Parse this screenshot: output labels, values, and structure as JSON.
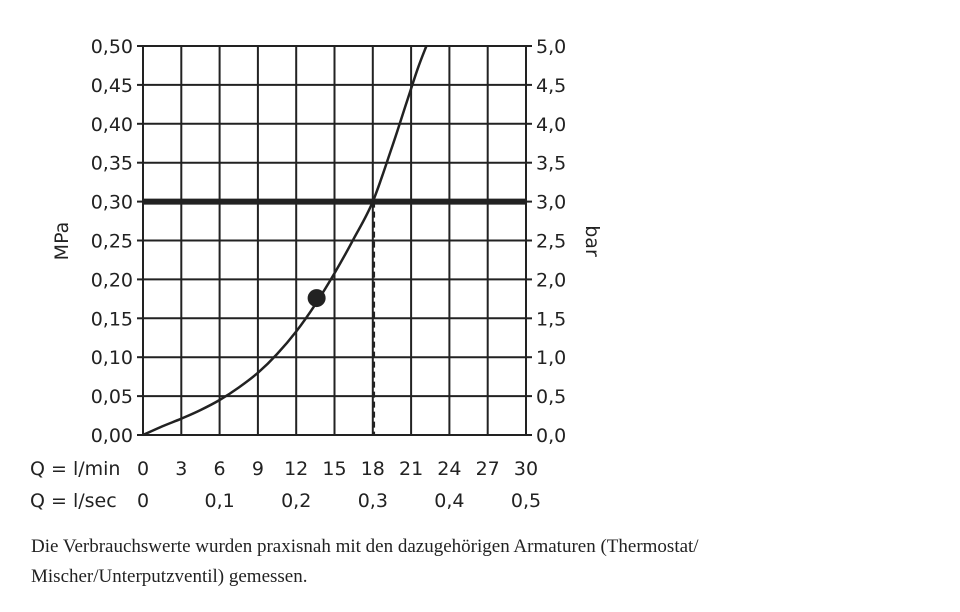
{
  "chart_data": {
    "type": "line",
    "xlabel_lmin": "Q = l/min",
    "xlabel_lsec": "Q = l/sec",
    "ylabel_left": "MPa",
    "ylabel_right": "bar",
    "x_ticks_lmin": [
      "0",
      "3",
      "6",
      "9",
      "12",
      "15",
      "18",
      "21",
      "24",
      "27",
      "30"
    ],
    "x_ticks_lsec": [
      {
        "label": "0",
        "value": 0
      },
      {
        "label": "0,1",
        "value": 6
      },
      {
        "label": "0,2",
        "value": 12
      },
      {
        "label": "0,3",
        "value": 18
      },
      {
        "label": "0,4",
        "value": 24
      },
      {
        "label": "0,5",
        "value": 30
      }
    ],
    "y_ticks_left": [
      "0,00",
      "0,05",
      "0,10",
      "0,15",
      "0,20",
      "0,25",
      "0,30",
      "0,35",
      "0,40",
      "0,45",
      "0,50"
    ],
    "y_ticks_right": [
      "0,0",
      "0,5",
      "1,0",
      "1,5",
      "2,0",
      "2,5",
      "3,0",
      "3,5",
      "4,0",
      "4,5",
      "5,0"
    ],
    "xlim": [
      0,
      30
    ],
    "ylim": [
      0,
      0.5
    ],
    "grid": true,
    "series": [
      {
        "x": [
          0,
          1.5,
          3,
          4.5,
          6,
          7.5,
          9,
          10.5,
          12,
          13.5,
          15,
          16.5,
          18,
          19.5,
          20.5,
          21.5,
          22.2
        ],
        "y": [
          0,
          0.011,
          0.021,
          0.032,
          0.045,
          0.061,
          0.08,
          0.104,
          0.133,
          0.168,
          0.208,
          0.252,
          0.3,
          0.37,
          0.42,
          0.47,
          0.5
        ]
      }
    ],
    "reference_line": {
      "y": 0.3
    },
    "marker_point": {
      "x": 13.6,
      "y": 0.176
    },
    "vertical_dashed": {
      "x": 18.1,
      "y": 0.3
    }
  },
  "caption": {
    "line1": "Die Verbrauchswerte wurden praxisnah mit den dazugehörigen Armaturen (Thermostat/",
    "line2": "Mischer/Unterputzventil) gemessen."
  }
}
